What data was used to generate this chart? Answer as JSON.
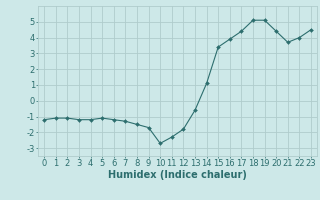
{
  "x": [
    0,
    1,
    2,
    3,
    4,
    5,
    6,
    7,
    8,
    9,
    10,
    11,
    12,
    13,
    14,
    15,
    16,
    17,
    18,
    19,
    20,
    21,
    22,
    23
  ],
  "y": [
    -1.2,
    -1.1,
    -1.1,
    -1.2,
    -1.2,
    -1.1,
    -1.2,
    -1.3,
    -1.5,
    -1.7,
    -2.7,
    -2.3,
    -1.8,
    -0.6,
    1.1,
    3.4,
    3.9,
    4.4,
    5.1,
    5.1,
    4.4,
    3.7,
    4.0,
    4.5
  ],
  "line_color": "#2d6e6e",
  "marker": "D",
  "marker_size": 2.0,
  "bg_color": "#cde8e8",
  "grid_color": "#b0cccc",
  "xlabel": "Humidex (Indice chaleur)",
  "ylim": [
    -3.5,
    6.0
  ],
  "xlim": [
    -0.5,
    23.5
  ],
  "yticks": [
    -3,
    -2,
    -1,
    0,
    1,
    2,
    3,
    4,
    5
  ],
  "xticks": [
    0,
    1,
    2,
    3,
    4,
    5,
    6,
    7,
    8,
    9,
    10,
    11,
    12,
    13,
    14,
    15,
    16,
    17,
    18,
    19,
    20,
    21,
    22,
    23
  ],
  "font_color": "#2d6e6e",
  "font_size": 6.0,
  "label_font_size": 7.0,
  "linewidth": 0.8
}
